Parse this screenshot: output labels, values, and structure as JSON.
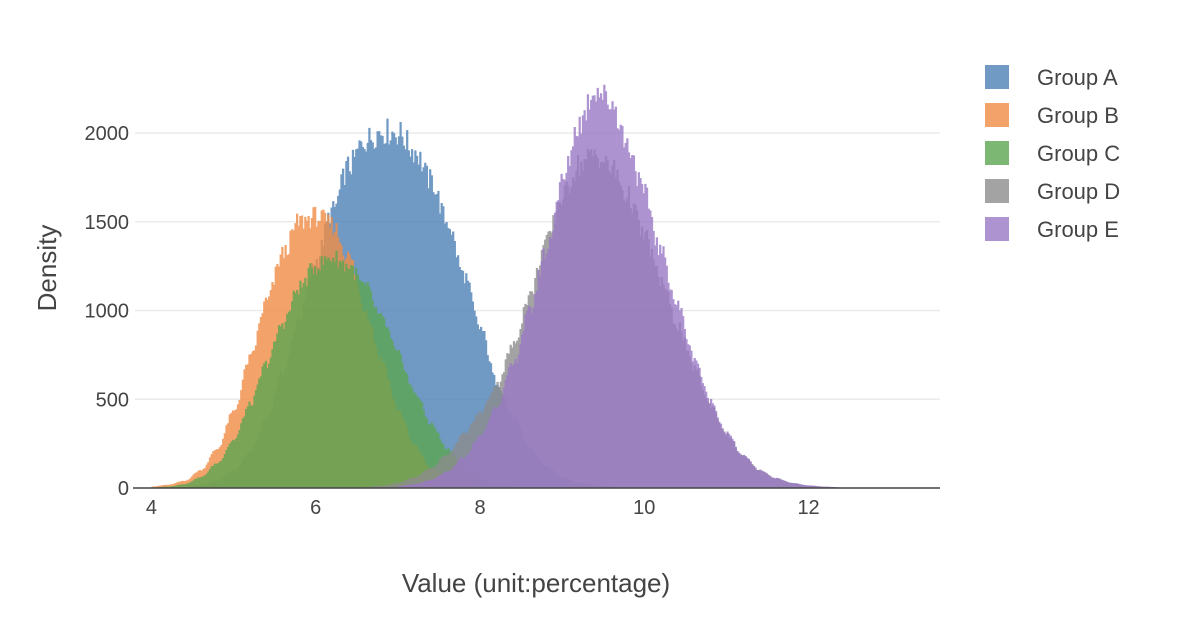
{
  "chart_data": {
    "type": "histogram",
    "xlabel": "Value (unit:percentage)",
    "ylabel": "Density",
    "xlim": [
      3.8,
      13.6
    ],
    "ylim": [
      0,
      2400
    ],
    "x_ticks": [
      4,
      6,
      8,
      10,
      12
    ],
    "y_ticks": [
      0,
      500,
      1000,
      1500,
      2000
    ],
    "grid": "horizontal",
    "legend_position": "top-right",
    "bin_width": 0.02,
    "opacity": 0.8,
    "series": [
      {
        "name": "Group A",
        "color": "#4c80b5",
        "x": [
          4.0,
          4.2,
          4.4,
          4.6,
          4.8,
          5.0,
          5.2,
          5.4,
          5.6,
          5.8,
          6.0,
          6.2,
          6.4,
          6.6,
          6.8,
          7.0,
          7.2,
          7.4,
          7.6,
          7.8,
          8.0,
          8.2,
          8.4,
          8.6,
          8.8,
          9.0,
          9.2,
          9.4,
          9.6,
          9.8,
          10.0,
          10.2,
          10.4
        ],
        "values": [
          0,
          2,
          5,
          15,
          40,
          95,
          200,
          390,
          650,
          960,
          1280,
          1560,
          1810,
          1960,
          2010,
          2000,
          1900,
          1730,
          1500,
          1200,
          900,
          600,
          390,
          230,
          120,
          60,
          30,
          14,
          6,
          3,
          1,
          0,
          0
        ]
      },
      {
        "name": "Group B",
        "color": "#f08c45",
        "x": [
          4.0,
          4.2,
          4.4,
          4.6,
          4.8,
          5.0,
          5.2,
          5.4,
          5.6,
          5.8,
          6.0,
          6.2,
          6.4,
          6.6,
          6.8,
          7.0,
          7.2,
          7.4,
          7.6,
          7.8,
          8.0
        ],
        "values": [
          8,
          18,
          40,
          100,
          220,
          430,
          730,
          1050,
          1320,
          1500,
          1530,
          1480,
          1300,
          1010,
          720,
          440,
          240,
          110,
          45,
          15,
          4
        ]
      },
      {
        "name": "Group C",
        "color": "#5ba551",
        "x": [
          4.0,
          4.2,
          4.4,
          4.6,
          4.8,
          5.0,
          5.2,
          5.4,
          5.6,
          5.8,
          6.0,
          6.2,
          6.4,
          6.6,
          6.8,
          7.0,
          7.2,
          7.4,
          7.6,
          7.8,
          8.0,
          8.2,
          8.4
        ],
        "values": [
          2,
          8,
          22,
          60,
          140,
          270,
          470,
          700,
          930,
          1130,
          1250,
          1300,
          1250,
          1130,
          950,
          750,
          540,
          360,
          220,
          120,
          55,
          20,
          6
        ]
      },
      {
        "name": "Group D",
        "color": "#8c8c8c",
        "x": [
          6.6,
          6.8,
          7.0,
          7.2,
          7.4,
          7.6,
          7.8,
          8.0,
          8.2,
          8.4,
          8.6,
          8.8,
          9.0,
          9.2,
          9.4,
          9.6,
          9.8,
          10.0,
          10.2,
          10.4,
          10.6,
          10.8,
          11.0,
          11.2,
          11.4,
          11.6,
          11.8,
          12.0,
          12.2,
          12.4,
          12.8,
          13.2
        ],
        "values": [
          5,
          12,
          28,
          60,
          110,
          190,
          300,
          420,
          580,
          800,
          1080,
          1380,
          1640,
          1820,
          1880,
          1800,
          1640,
          1420,
          1170,
          920,
          680,
          470,
          300,
          180,
          100,
          55,
          28,
          14,
          7,
          3,
          1,
          0
        ]
      },
      {
        "name": "Group E",
        "color": "#9a78c6",
        "x": [
          7.0,
          7.2,
          7.4,
          7.6,
          7.8,
          8.0,
          8.2,
          8.4,
          8.6,
          8.8,
          9.0,
          9.2,
          9.4,
          9.6,
          9.8,
          10.0,
          10.2,
          10.4,
          10.6,
          10.8,
          11.0,
          11.2,
          11.4,
          11.6,
          11.8,
          12.0,
          12.2,
          12.4,
          12.8,
          13.2
        ],
        "values": [
          10,
          22,
          45,
          90,
          170,
          290,
          460,
          690,
          990,
          1330,
          1720,
          2050,
          2250,
          2170,
          1930,
          1650,
          1330,
          1030,
          740,
          490,
          310,
          180,
          100,
          55,
          28,
          14,
          7,
          3,
          1,
          0
        ]
      }
    ]
  }
}
